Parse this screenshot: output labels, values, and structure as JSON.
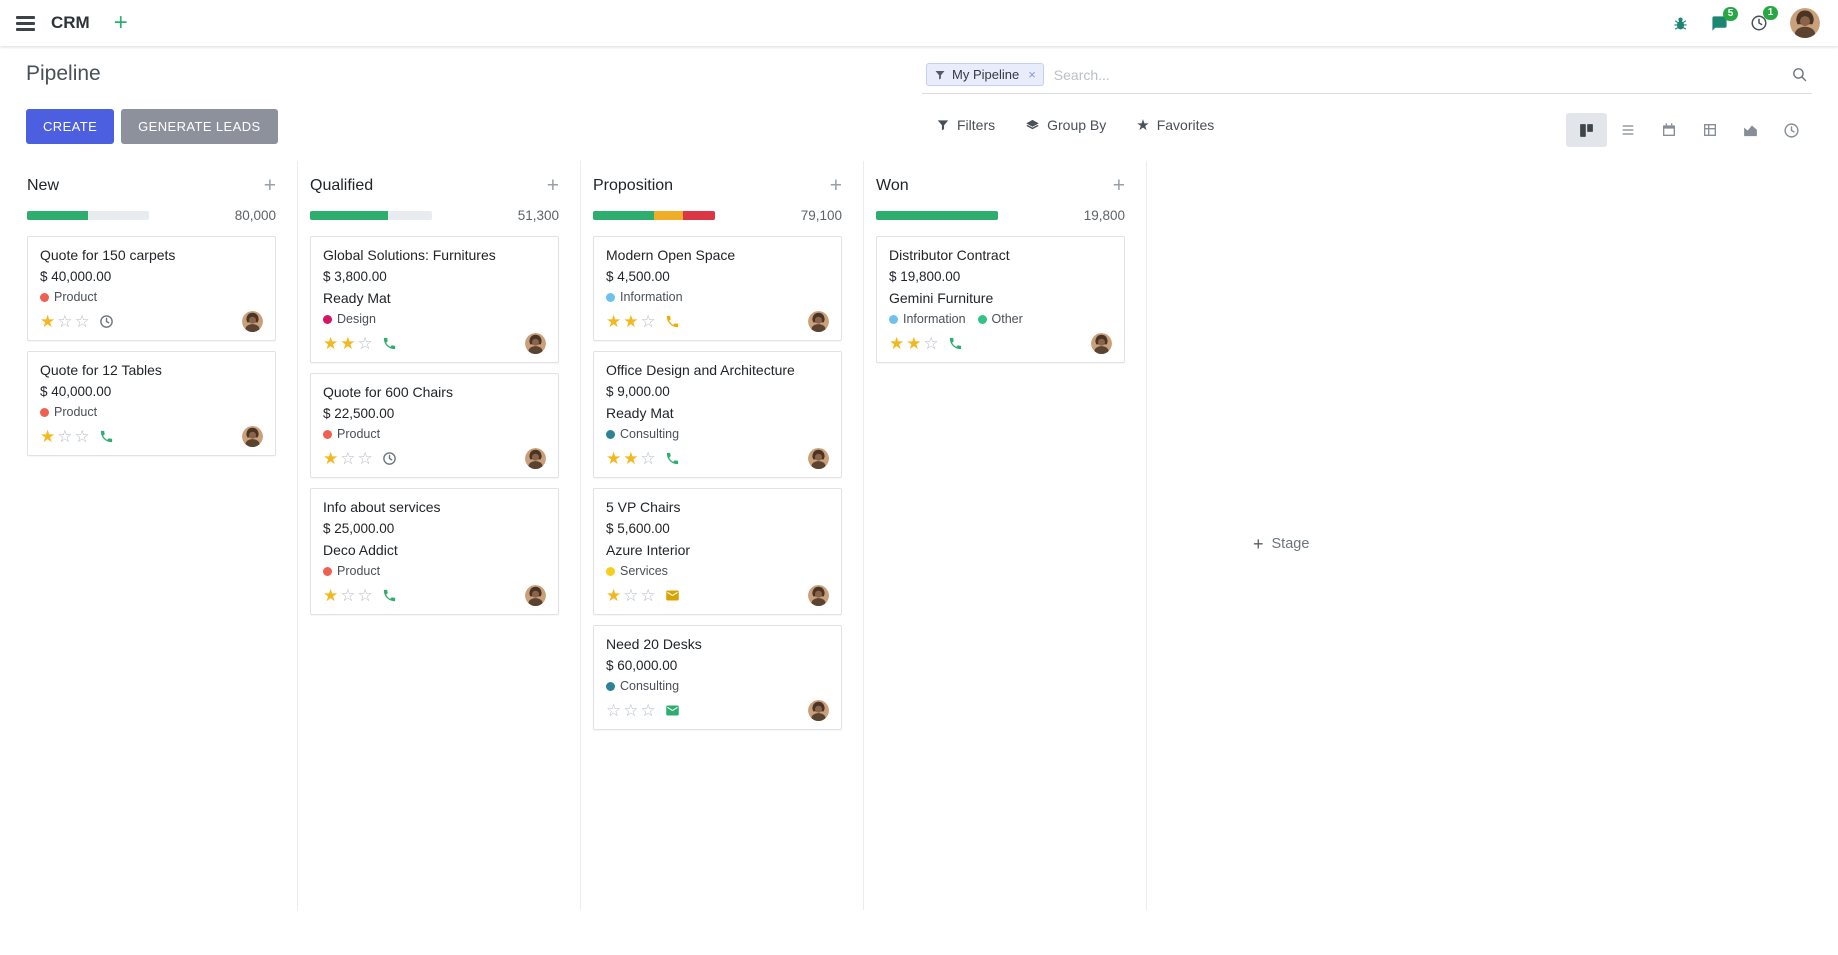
{
  "theme": {
    "primary": "#4c5fe1",
    "success": "#2eae6e",
    "warning": "#f0ad27",
    "danger": "#dc3545",
    "star_filled": "#f3b81f"
  },
  "icons": {
    "plus": "+",
    "close": "×",
    "star": "★",
    "star_filled_glyph": "★",
    "star_empty_glyph": "☆"
  },
  "navbar": {
    "app_name": "CRM",
    "messages_badge": "5",
    "activities_badge": "1"
  },
  "control_panel": {
    "title": "Pipeline",
    "create_label": "CREATE",
    "generate_leads_label": "GENERATE LEADS",
    "search": {
      "facet_label": "My Pipeline",
      "placeholder": "Search..."
    },
    "menus": {
      "filters": "Filters",
      "group_by": "Group By",
      "favorites": "Favorites"
    }
  },
  "board": {
    "add_stage_label": "Stage",
    "columns": [
      {
        "name": "New",
        "amount": "80,000",
        "progress": [
          {
            "type": "success",
            "pct": 50
          }
        ],
        "cards": [
          {
            "title": "Quote for 150 carpets",
            "amount": "$ 40,000.00",
            "tags": [
              {
                "label": "Product",
                "color": "#f06050"
              }
            ],
            "stars": 1,
            "activity": {
              "icon": "clock-icon",
              "color": "#6c757d"
            }
          },
          {
            "title": "Quote for 12 Tables",
            "amount": "$ 40,000.00",
            "tags": [
              {
                "label": "Product",
                "color": "#f06050"
              }
            ],
            "stars": 1,
            "activity": {
              "icon": "phone-icon",
              "color": "#2eae6e"
            }
          }
        ]
      },
      {
        "name": "Qualified",
        "amount": "51,300",
        "progress": [
          {
            "type": "success",
            "pct": 64
          }
        ],
        "cards": [
          {
            "title": "Global Solutions: Furnitures",
            "amount": "$ 3,800.00",
            "partner": "Ready Mat",
            "tags": [
              {
                "label": "Design",
                "color": "#d6145f"
              }
            ],
            "stars": 2,
            "activity": {
              "icon": "phone-icon",
              "color": "#2eae6e"
            }
          },
          {
            "title": "Quote for 600 Chairs",
            "amount": "$ 22,500.00",
            "tags": [
              {
                "label": "Product",
                "color": "#f06050"
              }
            ],
            "stars": 1,
            "activity": {
              "icon": "clock-icon",
              "color": "#6c757d"
            }
          },
          {
            "title": "Info about services",
            "amount": "$ 25,000.00",
            "partner": "Deco Addict",
            "tags": [
              {
                "label": "Product",
                "color": "#f06050"
              }
            ],
            "stars": 1,
            "activity": {
              "icon": "phone-icon",
              "color": "#2eae6e"
            }
          }
        ]
      },
      {
        "name": "Proposition",
        "amount": "79,100",
        "progress": [
          {
            "type": "success",
            "pct": 50
          },
          {
            "type": "warning",
            "pct": 24
          },
          {
            "type": "danger",
            "pct": 26
          }
        ],
        "cards": [
          {
            "title": "Modern Open Space",
            "amount": "$ 4,500.00",
            "tags": [
              {
                "label": "Information",
                "color": "#6cc1ed"
              }
            ],
            "stars": 2,
            "activity": {
              "icon": "phone-icon",
              "color": "#f0ad00"
            }
          },
          {
            "title": "Office Design and Architecture",
            "amount": "$ 9,000.00",
            "partner": "Ready Mat",
            "tags": [
              {
                "label": "Consulting",
                "color": "#2c8397"
              }
            ],
            "stars": 2,
            "activity": {
              "icon": "phone-icon",
              "color": "#2eae6e"
            }
          },
          {
            "title": "5 VP Chairs",
            "amount": "$ 5,600.00",
            "partner": "Azure Interior",
            "tags": [
              {
                "label": "Services",
                "color": "#f7cd1f"
              }
            ],
            "stars": 1,
            "activity": {
              "icon": "envelope-icon",
              "color": "#d9a300"
            }
          },
          {
            "title": "Need 20 Desks",
            "amount": "$ 60,000.00",
            "tags": [
              {
                "label": "Consulting",
                "color": "#2c8397"
              }
            ],
            "stars": 0,
            "activity": {
              "icon": "envelope-icon",
              "color": "#2eae6e"
            }
          }
        ]
      },
      {
        "name": "Won",
        "amount": "19,800",
        "progress": [
          {
            "type": "success",
            "pct": 100
          }
        ],
        "cards": [
          {
            "title": "Distributor Contract",
            "amount": "$ 19,800.00",
            "partner": "Gemini Furniture",
            "tags": [
              {
                "label": "Information",
                "color": "#6cc1ed"
              },
              {
                "label": "Other",
                "color": "#30c381"
              }
            ],
            "stars": 2,
            "activity": {
              "icon": "phone-icon",
              "color": "#2eae6e"
            }
          }
        ]
      }
    ]
  }
}
